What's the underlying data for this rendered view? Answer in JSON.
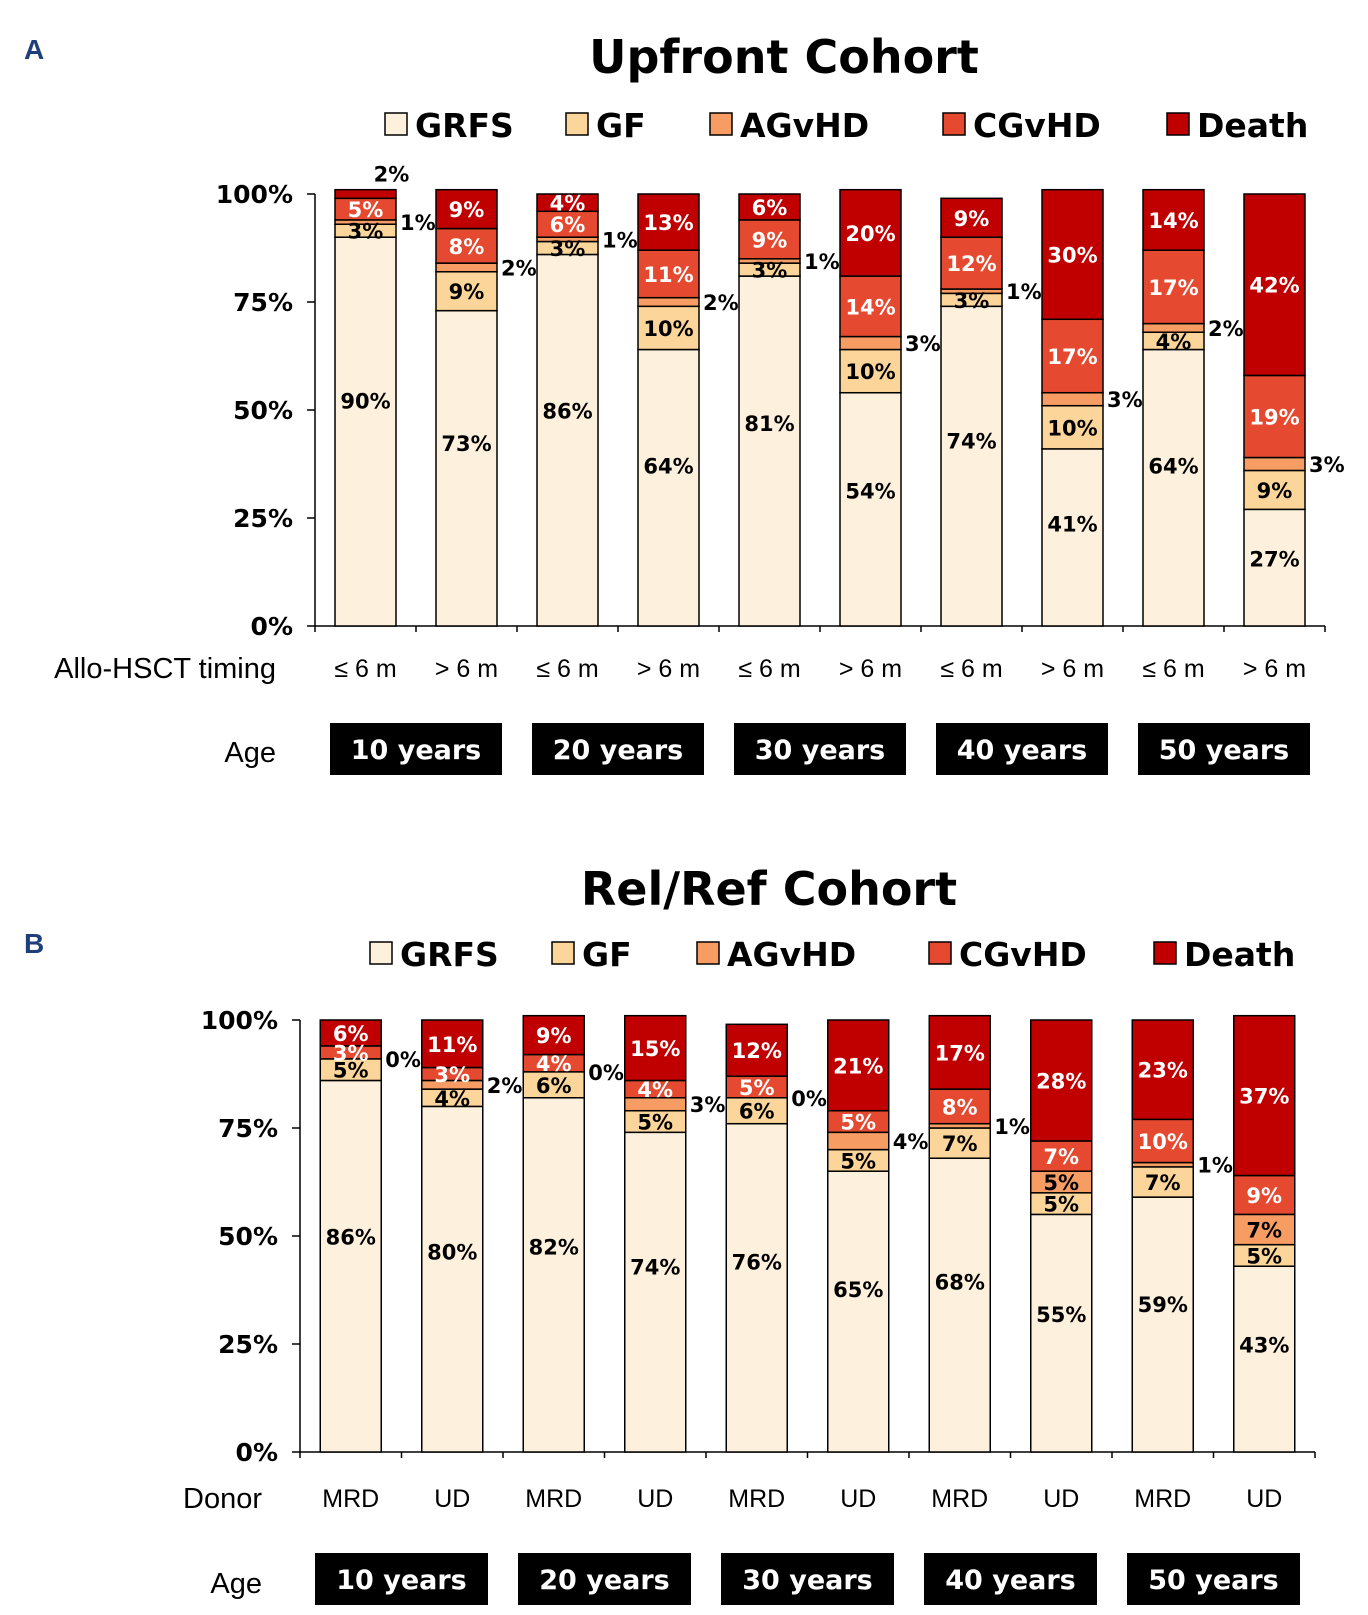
{
  "panels": {
    "a": {
      "letter": "A"
    },
    "b": {
      "letter": "B"
    }
  },
  "chart_data": [
    {
      "type": "bar",
      "stacked": true,
      "title": "Upfront Cohort",
      "panel": "A",
      "xlabel": "Allo-HSCT timing",
      "ylabel": "",
      "ylim": [
        0,
        100
      ],
      "yticks": [
        "0%",
        "25%",
        "50%",
        "75%",
        "100%"
      ],
      "legend_position": "top",
      "categories": [
        "≤ 6 m",
        "> 6 m",
        "≤ 6 m",
        "> 6 m",
        "≤ 6 m",
        "> 6 m",
        "≤ 6 m",
        "> 6 m",
        "≤ 6 m",
        "> 6 m"
      ],
      "age_label": "Age",
      "age_groups": [
        "10 years",
        "20 years",
        "30 years",
        "40 years",
        "50 years"
      ],
      "series": [
        {
          "name": "GRFS",
          "color": "#fdf0dc",
          "values": [
            90,
            73,
            86,
            64,
            81,
            54,
            74,
            41,
            64,
            27
          ],
          "labels": [
            "90%",
            "73%",
            "86%",
            "64%",
            "81%",
            "54%",
            "74%",
            "41%",
            "64%",
            "27%"
          ]
        },
        {
          "name": "GF",
          "color": "#fbd59a",
          "values": [
            3,
            9,
            3,
            10,
            3,
            10,
            3,
            10,
            4,
            9
          ],
          "labels": [
            "3%",
            "9%",
            "3%",
            "10%",
            "3%",
            "10%",
            "3%",
            "10%",
            "4%",
            "9%"
          ]
        },
        {
          "name": "AGvHD",
          "color": "#f79d64",
          "values": [
            1,
            2,
            1,
            2,
            1,
            3,
            1,
            3,
            2,
            3
          ],
          "labels": [
            "1%",
            "2%",
            "1%",
            "2%",
            "1%",
            "3%",
            "1%",
            "3%",
            "2%",
            "3%"
          ]
        },
        {
          "name": "CGvHD",
          "color": "#e5492f",
          "values": [
            5,
            8,
            6,
            11,
            9,
            14,
            12,
            17,
            17,
            19
          ],
          "labels": [
            "5%",
            "8%",
            "6%",
            "11%",
            "9%",
            "14%",
            "12%",
            "17%",
            "17%",
            "19%"
          ]
        },
        {
          "name": "Death",
          "color": "#c00000",
          "values": [
            2,
            9,
            4,
            13,
            6,
            20,
            9,
            30,
            14,
            42
          ],
          "labels": [
            "2%",
            "9%",
            "4%",
            "13%",
            "6%",
            "20%",
            "9%",
            "30%",
            "14%",
            "42%"
          ]
        }
      ]
    },
    {
      "type": "bar",
      "stacked": true,
      "title": "Rel/Ref Cohort",
      "panel": "B",
      "xlabel": "Donor",
      "ylabel": "",
      "ylim": [
        0,
        100
      ],
      "yticks": [
        "0%",
        "25%",
        "50%",
        "75%",
        "100%"
      ],
      "legend_position": "top",
      "categories": [
        "MRD",
        "UD",
        "MRD",
        "UD",
        "MRD",
        "UD",
        "MRD",
        "UD",
        "MRD",
        "UD"
      ],
      "age_label": "Age",
      "age_groups": [
        "10 years",
        "20 years",
        "30 years",
        "40 years",
        "50 years"
      ],
      "series": [
        {
          "name": "GRFS",
          "color": "#fdf0dc",
          "values": [
            86,
            80,
            82,
            74,
            76,
            65,
            68,
            55,
            59,
            43
          ],
          "labels": [
            "86%",
            "80%",
            "82%",
            "74%",
            "76%",
            "65%",
            "68%",
            "55%",
            "59%",
            "43%"
          ]
        },
        {
          "name": "GF",
          "color": "#fbd59a",
          "values": [
            5,
            4,
            6,
            5,
            6,
            5,
            7,
            5,
            7,
            5
          ],
          "labels": [
            "5%",
            "4%",
            "6%",
            "5%",
            "6%",
            "5%",
            "7%",
            "5%",
            "7%",
            "5%"
          ]
        },
        {
          "name": "AGvHD",
          "color": "#f79d64",
          "values": [
            0,
            2,
            0,
            3,
            0,
            4,
            1,
            5,
            1,
            7
          ],
          "labels": [
            "0%",
            "2%",
            "0%",
            "3%",
            "0%",
            "4%",
            "1%",
            "5%",
            "1%",
            "7%"
          ]
        },
        {
          "name": "CGvHD",
          "color": "#e5492f",
          "values": [
            3,
            3,
            4,
            4,
            5,
            5,
            8,
            7,
            10,
            9
          ],
          "labels": [
            "3%",
            "3%",
            "4%",
            "4%",
            "5%",
            "5%",
            "8%",
            "7%",
            "10%",
            "9%"
          ]
        },
        {
          "name": "Death",
          "color": "#c00000",
          "values": [
            6,
            11,
            9,
            15,
            12,
            21,
            17,
            28,
            23,
            37
          ],
          "labels": [
            "6%",
            "11%",
            "9%",
            "15%",
            "12%",
            "21%",
            "17%",
            "28%",
            "23%",
            "37%"
          ]
        }
      ]
    }
  ]
}
